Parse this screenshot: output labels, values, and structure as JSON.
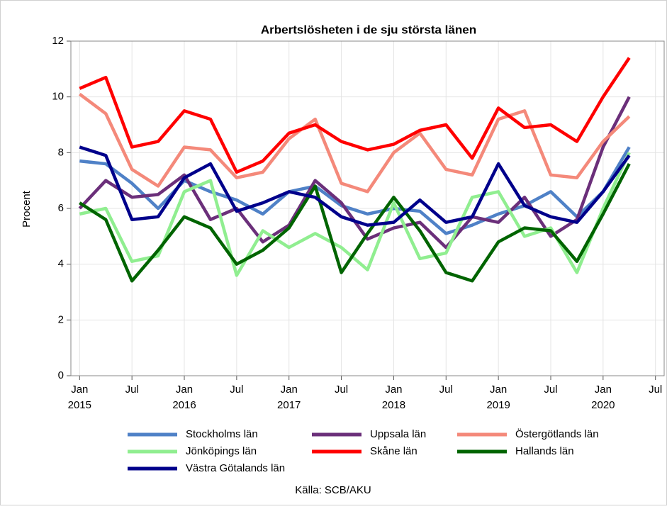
{
  "chart_data": {
    "type": "line",
    "title": "Arbertslösheten i de sju största länen",
    "ylabel": "Procent",
    "source": "Källa: SCB/AKU",
    "x": [
      "2015-01",
      "2015-04",
      "2015-07",
      "2015-10",
      "2016-01",
      "2016-04",
      "2016-07",
      "2016-10",
      "2017-01",
      "2017-04",
      "2017-07",
      "2017-10",
      "2018-01",
      "2018-04",
      "2018-07",
      "2018-10",
      "2019-01",
      "2019-04",
      "2019-07",
      "2019-10",
      "2020-01",
      "2020-04"
    ],
    "xlim": [
      "2014-12",
      "2020-08"
    ],
    "xticks": [
      {
        "value": "2015-01",
        "label": [
          "Jan",
          "2015"
        ]
      },
      {
        "value": "2015-07",
        "label": [
          "Jul"
        ]
      },
      {
        "value": "2016-01",
        "label": [
          "Jan",
          "2016"
        ]
      },
      {
        "value": "2016-07",
        "label": [
          "Jul"
        ]
      },
      {
        "value": "2017-01",
        "label": [
          "Jan",
          "2017"
        ]
      },
      {
        "value": "2017-07",
        "label": [
          "Jul"
        ]
      },
      {
        "value": "2018-01",
        "label": [
          "Jan",
          "2018"
        ]
      },
      {
        "value": "2018-07",
        "label": [
          "Jul"
        ]
      },
      {
        "value": "2019-01",
        "label": [
          "Jan",
          "2019"
        ]
      },
      {
        "value": "2019-07",
        "label": [
          "Jul"
        ]
      },
      {
        "value": "2020-01",
        "label": [
          "Jan",
          "2020"
        ]
      },
      {
        "value": "2020-07",
        "label": [
          "Jul"
        ]
      }
    ],
    "ylim": [
      0,
      12
    ],
    "yticks": [
      0,
      2,
      4,
      6,
      8,
      10,
      12
    ],
    "grid": true,
    "series": [
      {
        "name": "Stockholms län",
        "color": "#4f81c7",
        "values": [
          7.7,
          7.6,
          6.9,
          6.0,
          7.0,
          6.6,
          6.3,
          5.8,
          6.6,
          6.8,
          6.1,
          5.8,
          6.0,
          5.9,
          5.1,
          5.4,
          5.8,
          6.1,
          6.6,
          5.7,
          6.6,
          8.2
        ]
      },
      {
        "name": "Uppsala län",
        "color": "#6b2f7a",
        "values": [
          6.0,
          7.0,
          6.4,
          6.5,
          7.2,
          5.6,
          6.0,
          4.8,
          5.4,
          7.0,
          6.2,
          4.9,
          5.3,
          5.5,
          4.6,
          5.7,
          5.5,
          6.4,
          5.0,
          5.6,
          8.2,
          10.0
        ]
      },
      {
        "name": "Östergötlands län",
        "color": "#f4897a",
        "values": [
          10.1,
          9.4,
          7.4,
          6.8,
          8.2,
          8.1,
          7.1,
          7.3,
          8.5,
          9.2,
          6.9,
          6.6,
          8.0,
          8.7,
          7.4,
          7.2,
          9.2,
          9.5,
          7.2,
          7.1,
          8.4,
          9.3
        ]
      },
      {
        "name": "Jönköpings län",
        "color": "#90ee90",
        "values": [
          5.8,
          6.0,
          4.1,
          4.3,
          6.6,
          7.0,
          3.6,
          5.2,
          4.6,
          5.1,
          4.6,
          3.8,
          6.2,
          4.2,
          4.4,
          6.4,
          6.6,
          5.0,
          5.3,
          3.7,
          6.0,
          8.0
        ]
      },
      {
        "name": "Skåne län",
        "color": "#ff0000",
        "values": [
          10.3,
          10.7,
          8.2,
          8.4,
          9.5,
          9.2,
          7.3,
          7.7,
          8.7,
          9.0,
          8.4,
          8.1,
          8.3,
          8.8,
          9.0,
          7.8,
          9.6,
          8.9,
          9.0,
          8.4,
          10.0,
          11.4
        ]
      },
      {
        "name": "Hallands län",
        "color": "#006400",
        "values": [
          6.2,
          5.6,
          3.4,
          4.5,
          5.7,
          5.3,
          4.0,
          4.5,
          5.3,
          6.8,
          3.7,
          5.1,
          6.4,
          5.2,
          3.7,
          3.4,
          4.8,
          5.3,
          5.2,
          4.1,
          5.8,
          7.6
        ]
      },
      {
        "name": "Västra Götalands län",
        "color": "#00008b",
        "values": [
          8.2,
          7.9,
          5.6,
          5.7,
          7.1,
          7.6,
          5.9,
          6.2,
          6.6,
          6.4,
          5.7,
          5.4,
          5.5,
          6.3,
          5.5,
          5.7,
          7.6,
          6.1,
          5.7,
          5.5,
          6.6,
          7.9
        ]
      }
    ]
  }
}
